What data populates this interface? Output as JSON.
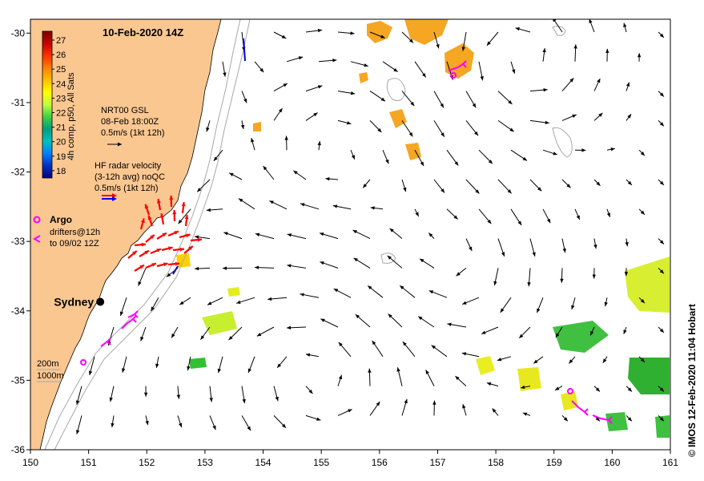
{
  "map": {
    "title": "10-Feb-2020 14Z",
    "credit": "© IMOS 12-Feb-2020 11:04 Hobart",
    "x_ticks": [
      "150",
      "151",
      "152",
      "153",
      "154",
      "155",
      "156",
      "157",
      "158",
      "159",
      "160",
      "161"
    ],
    "y_ticks": [
      "-30",
      "-31",
      "-32",
      "-33",
      "-34",
      "-35",
      "-36"
    ],
    "lon_range": [
      150,
      161
    ],
    "lat_range": [
      -36,
      -29.8
    ],
    "city": {
      "name": "Sydney",
      "lon": 151.2,
      "lat": -33.87
    },
    "depth_legend": [
      "200m",
      "1000m"
    ],
    "colors": {
      "land": "#fac791",
      "ocean": "#ffffff",
      "gsl_arrow": "#000000",
      "hf_radar": "#ff0000",
      "argo": "#ff00ff"
    }
  },
  "colorbar": {
    "label": "4h comp, p50, All Sats",
    "ticks": [
      "27",
      "26",
      "25",
      "24",
      "23",
      "22",
      "21",
      "20",
      "19",
      "18"
    ],
    "colors": [
      "#7a0000",
      "#c80000",
      "#ff3000",
      "#ff8000",
      "#ffc000",
      "#ffff00",
      "#c0ff40",
      "#40d040",
      "#00a080",
      "#00c0c0",
      "#0080ff",
      "#0030c0",
      "#000080"
    ]
  },
  "legend": {
    "gsl": {
      "line1": "NRT00 GSL",
      "line2": "08-Feb 18:00Z",
      "line3": "0.5m/s (1kt 12h)"
    },
    "hf": {
      "line1": "HF radar velocity",
      "line2": "(3-12h avg) noQC",
      "line3": "0.5m/s (1kt 12h)"
    },
    "argo": {
      "label": "Argo",
      "line2": "drifters@12h",
      "line3": "to 09/02 12Z"
    }
  }
}
